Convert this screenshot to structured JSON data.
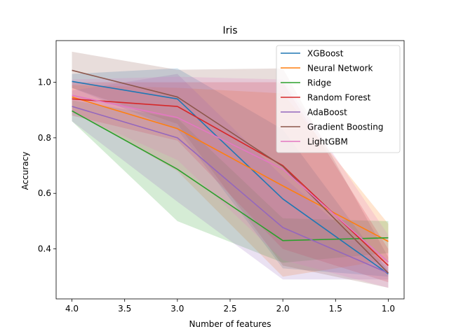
{
  "chart_data": {
    "type": "line",
    "title": "Iris",
    "xlabel": "Number of features",
    "ylabel": "Accuracy",
    "x": [
      4.0,
      3.0,
      2.0,
      1.0
    ],
    "xlim": [
      4.15,
      0.85
    ],
    "ylim": [
      0.22,
      1.15
    ],
    "x_ticks": [
      4.0,
      3.5,
      3.0,
      2.5,
      2.0,
      1.5,
      1.0
    ],
    "x_tick_labels": [
      "4.0",
      "3.5",
      "3.0",
      "2.5",
      "2.0",
      "1.5",
      "1.0"
    ],
    "y_ticks": [
      0.4,
      0.6,
      0.8,
      1.0
    ],
    "y_tick_labels": [
      "0.4",
      "0.6",
      "0.8",
      "1.0"
    ],
    "x_inverted": true,
    "grid": false,
    "legend_position": "top-right",
    "band_opacity": 0.2,
    "series": [
      {
        "name": "XGBoost",
        "color": "#1f77b4",
        "values": [
          1.003,
          0.94,
          0.58,
          0.31
        ],
        "lower": [
          0.98,
          0.83,
          0.33,
          0.3
        ],
        "upper": [
          1.03,
          1.05,
          0.83,
          0.32
        ]
      },
      {
        "name": "Neural Network",
        "color": "#ff7f0e",
        "values": [
          0.947,
          0.833,
          0.627,
          0.427
        ],
        "lower": [
          0.9,
          0.68,
          0.3,
          0.36
        ],
        "upper": [
          0.99,
          0.98,
          0.96,
          0.49
        ]
      },
      {
        "name": "Ridge",
        "color": "#2ca02c",
        "values": [
          0.897,
          0.687,
          0.43,
          0.44
        ],
        "lower": [
          0.86,
          0.5,
          0.35,
          0.385
        ],
        "upper": [
          0.935,
          0.87,
          0.51,
          0.5
        ]
      },
      {
        "name": "Random Forest",
        "color": "#d62728",
        "values": [
          0.94,
          0.913,
          0.7,
          0.34
        ],
        "lower": [
          0.88,
          0.79,
          0.4,
          0.28
        ],
        "upper": [
          1.0,
          1.0,
          1.0,
          0.4
        ]
      },
      {
        "name": "AdaBoost",
        "color": "#9467bd",
        "values": [
          0.913,
          0.8,
          0.477,
          0.313
        ],
        "lower": [
          0.86,
          0.57,
          0.29,
          0.29
        ],
        "upper": [
          0.97,
          1.03,
          0.66,
          0.335
        ]
      },
      {
        "name": "Gradient Boosting",
        "color": "#8c564b",
        "values": [
          1.043,
          0.947,
          0.697,
          0.313
        ],
        "lower": [
          0.98,
          0.85,
          0.34,
          0.26
        ],
        "upper": [
          1.11,
          1.045,
          1.05,
          0.37
        ]
      },
      {
        "name": "LightGBM",
        "color": "#e377c2",
        "values": [
          0.953,
          0.873,
          0.687,
          0.353
        ],
        "lower": [
          0.89,
          0.72,
          0.36,
          0.26
        ],
        "upper": [
          1.01,
          1.02,
          1.01,
          0.45
        ]
      }
    ]
  }
}
